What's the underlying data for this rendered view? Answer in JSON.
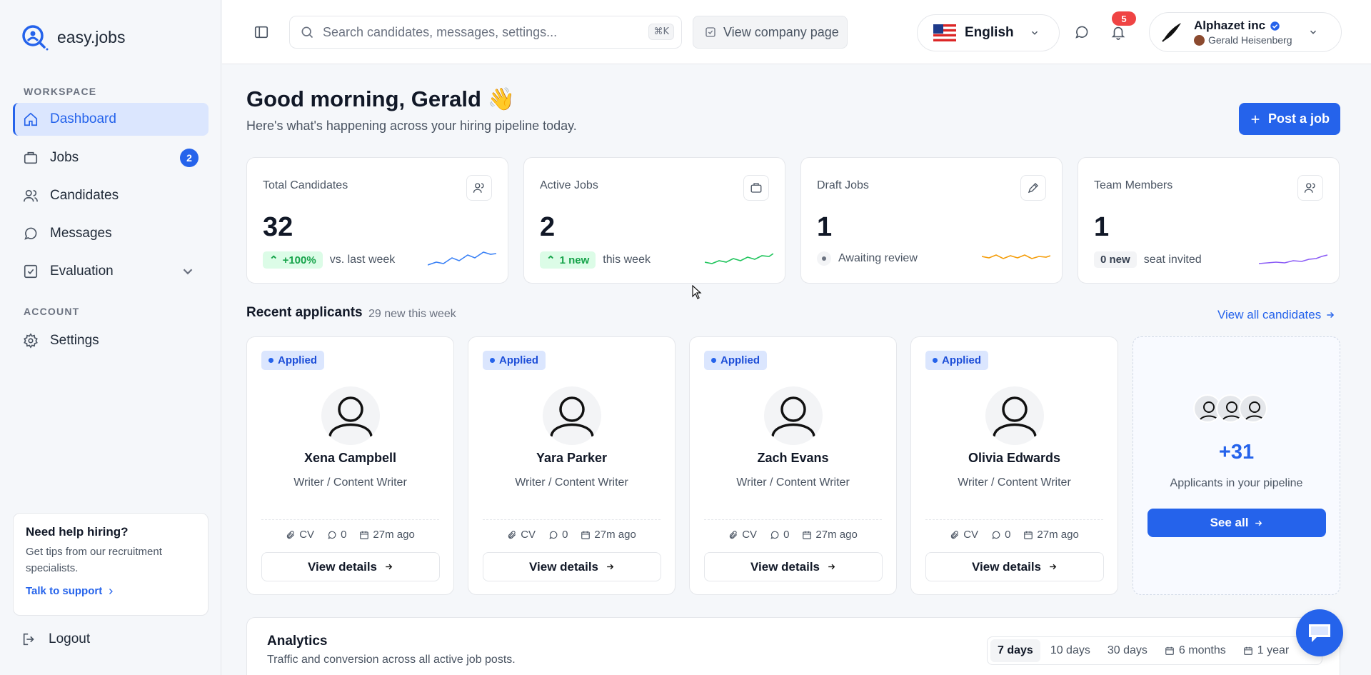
{
  "brand": {
    "name": "easy.jobs",
    "accent": "#2563eb"
  },
  "sidebar": {
    "workspace_label": "WORKSPACE",
    "account_label": "ACCOUNT",
    "items": [
      {
        "label": "Dashboard",
        "icon": "home-icon"
      },
      {
        "label": "Jobs",
        "icon": "briefcase-icon",
        "badge": "2"
      },
      {
        "label": "Candidates",
        "icon": "users-icon"
      },
      {
        "label": "Messages",
        "icon": "chat-icon"
      },
      {
        "label": "Evaluation",
        "icon": "checklist-icon"
      },
      {
        "label": "Settings",
        "icon": "gear-icon"
      }
    ],
    "help": {
      "title": "Need help hiring?",
      "text": "Get tips from our recruitment specialists.",
      "link": "Talk to support"
    },
    "logout": "Logout"
  },
  "topbar": {
    "search_placeholder": "Search candidates, messages, settings...",
    "search_shortcut": "⌘K",
    "company_button": "View company page",
    "language": "English",
    "notifications_count": "5",
    "account": {
      "company": "Alphazet inc",
      "user": "Gerald Heisenberg"
    }
  },
  "main": {
    "greeting": "Good morning, Gerald 👋",
    "subtitle": "Here's what's happening across your hiring pipeline today.",
    "post_job": "Post a job",
    "stats": [
      {
        "label": "Total Candidates",
        "value": "32",
        "pill": "+100%",
        "note": "vs. last week",
        "color": "#3b82f6"
      },
      {
        "label": "Active Jobs",
        "value": "2",
        "pill": "1 new",
        "note": "this week",
        "color": "#22c55e"
      },
      {
        "label": "Draft Jobs",
        "value": "1",
        "note": "Awaiting review",
        "color": "#f59e0b"
      },
      {
        "label": "Team Members",
        "value": "1",
        "pill": "0 new",
        "note": "seat invited",
        "color": "#8b5cf6"
      }
    ],
    "recent": {
      "title": "Recent applicants",
      "subtitle": "29 new this week",
      "view_all": "View all candidates",
      "applicants": [
        {
          "status": "Applied",
          "name": "Xena Campbell",
          "role": "Writer / Content Writer",
          "cv": "CV",
          "comments": "0",
          "time": "27m ago",
          "action": "View details"
        },
        {
          "status": "Applied",
          "name": "Yara Parker",
          "role": "Writer / Content Writer",
          "cv": "CV",
          "comments": "0",
          "time": "27m ago",
          "action": "View details"
        },
        {
          "status": "Applied",
          "name": "Zach Evans",
          "role": "Writer / Content Writer",
          "cv": "CV",
          "comments": "0",
          "time": "27m ago",
          "action": "View details"
        },
        {
          "status": "Applied",
          "name": "Olivia Edwards",
          "role": "Writer / Content Writer",
          "cv": "CV",
          "comments": "0",
          "time": "27m ago",
          "action": "View details"
        }
      ],
      "more": {
        "count": "+31",
        "text": "Applicants in your pipeline",
        "button": "See all"
      }
    },
    "analytics": {
      "title": "Analytics",
      "subtitle": "Traffic and conversion across all active job posts.",
      "ranges": [
        "7 days",
        "10 days",
        "30 days",
        "6 months",
        "1 year"
      ]
    }
  }
}
